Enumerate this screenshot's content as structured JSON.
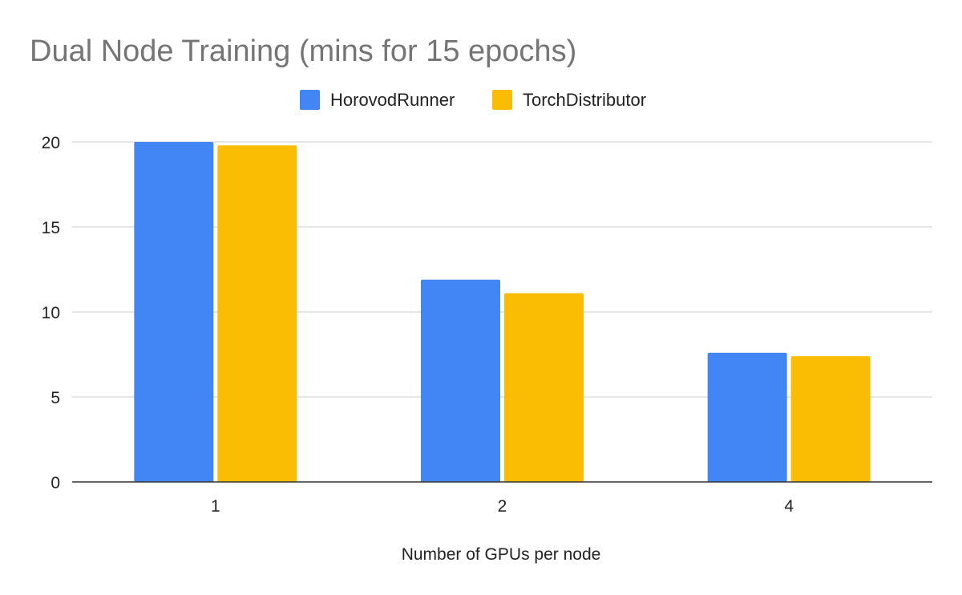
{
  "chart_data": {
    "type": "bar",
    "title": "Dual Node Training (mins for 15 epochs)",
    "xlabel": "Number of GPUs per node",
    "ylabel": "",
    "categories": [
      "1",
      "2",
      "4"
    ],
    "series": [
      {
        "name": "HorovodRunner",
        "color": "#4285F4",
        "values": [
          20.0,
          11.9,
          7.6
        ]
      },
      {
        "name": "TorchDistributor",
        "color": "#FBBC04",
        "values": [
          19.8,
          11.1,
          7.4
        ]
      }
    ],
    "ylim": [
      0,
      20
    ],
    "yticks": [
      0,
      5,
      10,
      15,
      20
    ],
    "grid": true,
    "legend_position": "top-center"
  }
}
